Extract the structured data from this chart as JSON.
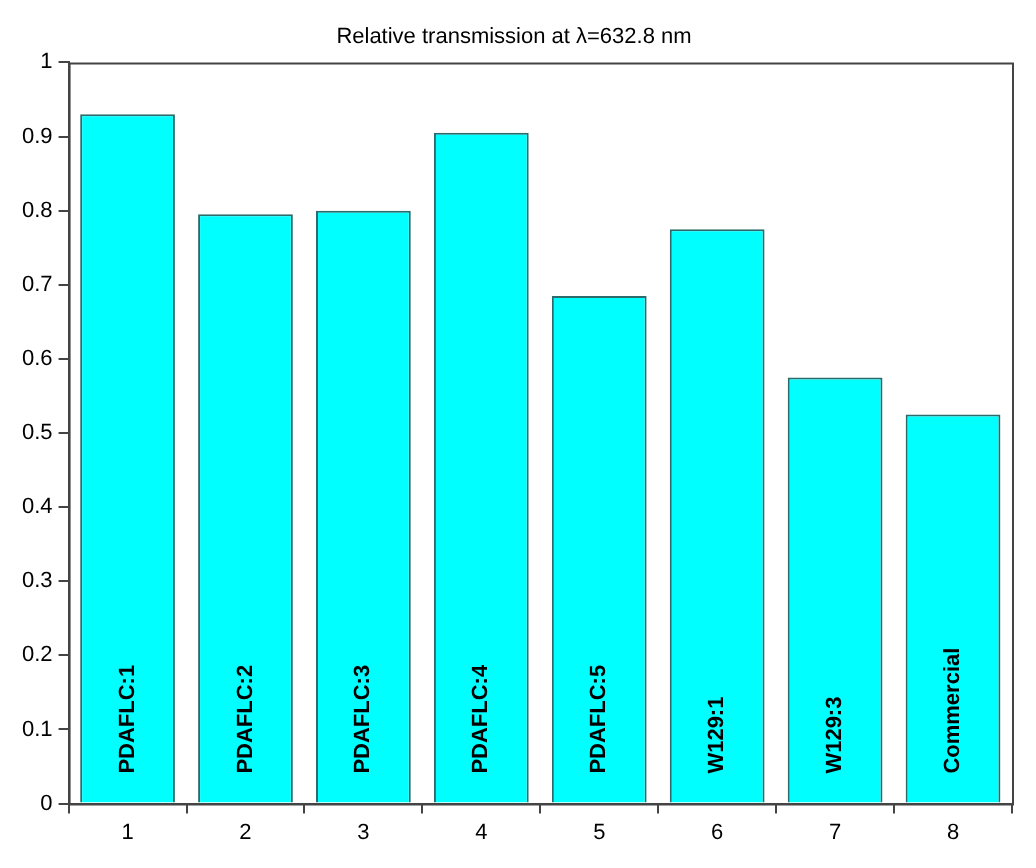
{
  "chart_data": {
    "type": "bar",
    "title": "Relative transmission at λ=632.8 nm",
    "categories": [
      "1",
      "2",
      "3",
      "4",
      "5",
      "6",
      "7",
      "8"
    ],
    "values": [
      0.93,
      0.795,
      0.8,
      0.905,
      0.685,
      0.775,
      0.575,
      0.525
    ],
    "color": "#00ffff",
    "ylim": [
      0,
      1
    ],
    "yticks": [
      0,
      0.1,
      0.2,
      0.3,
      0.4,
      0.5,
      0.6,
      0.7,
      0.8,
      0.9,
      1
    ],
    "grid": false,
    "legend": false,
    "annotations": [
      "PDAFLC:1",
      "PDAFLC:2",
      "PDAFLC:3",
      "PDAFLC:4",
      "PDAFLC:5",
      "W129:1",
      "W129:3",
      "Commercial"
    ]
  }
}
